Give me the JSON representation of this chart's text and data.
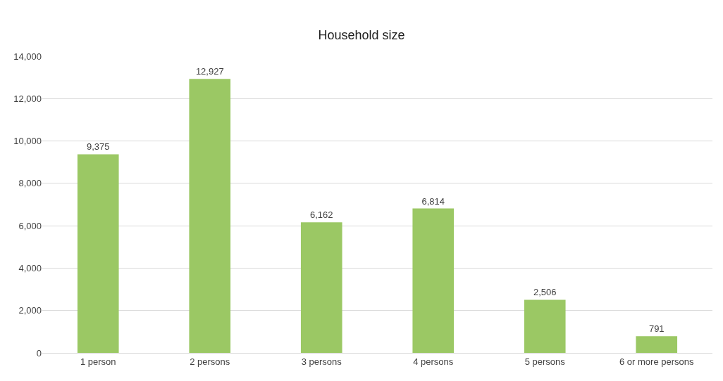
{
  "chart_data": {
    "type": "bar",
    "title": "Household size",
    "categories": [
      "1 person",
      "2 persons",
      "3 persons",
      "4 persons",
      "5 persons",
      "6 or more persons"
    ],
    "values": [
      9375,
      12927,
      6162,
      6814,
      2506,
      791
    ],
    "color": "#9bc864",
    "ylim": [
      0,
      14000
    ],
    "yticks": [
      {
        "value": 0,
        "label": "0"
      },
      {
        "value": 2000,
        "label": "2,000"
      },
      {
        "value": 4000,
        "label": "4,000"
      },
      {
        "value": 6000,
        "label": "6,000"
      },
      {
        "value": 8000,
        "label": "8,000"
      },
      {
        "value": 10000,
        "label": "10,000"
      },
      {
        "value": 12000,
        "label": "12,000"
      },
      {
        "value": 14000,
        "label": "14,000"
      }
    ],
    "value_labels": [
      "9,375",
      "12,927",
      "6,162",
      "6,814",
      "2,506",
      "791"
    ],
    "grid": "y"
  }
}
